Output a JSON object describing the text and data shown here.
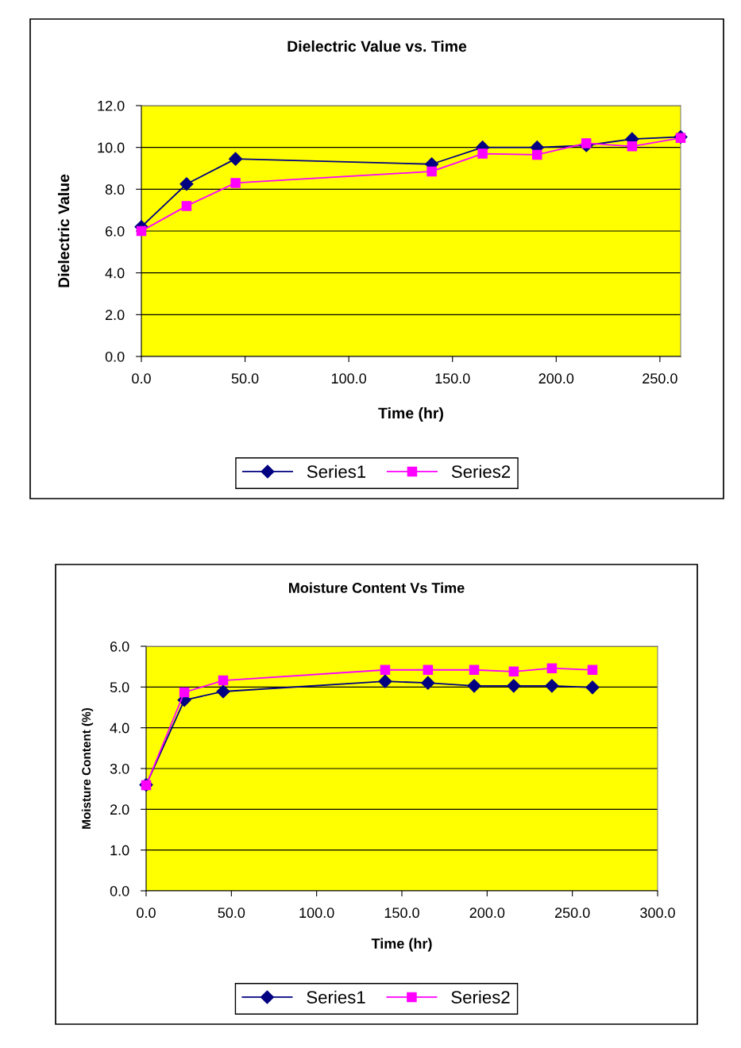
{
  "chart_data": [
    {
      "type": "line",
      "title": "Dielectric Value vs. Time",
      "xlabel": "Time (hr)",
      "ylabel": "Dielectric Value",
      "xlim": [
        0,
        260
      ],
      "xticks": [
        {
          "value": 0,
          "label": "0.0"
        },
        {
          "value": 50,
          "label": "50.0"
        },
        {
          "value": 100,
          "label": "100.0"
        },
        {
          "value": 150,
          "label": "150.0"
        },
        {
          "value": 200,
          "label": "200.0"
        },
        {
          "value": 250,
          "label": "250.0"
        }
      ],
      "ylim": [
        0,
        12
      ],
      "yticks": [
        {
          "value": 0,
          "label": "0.0"
        },
        {
          "value": 2,
          "label": "2.0"
        },
        {
          "value": 4,
          "label": "4.0"
        },
        {
          "value": 6,
          "label": "6.0"
        },
        {
          "value": 8,
          "label": "8.0"
        },
        {
          "value": 10,
          "label": "10.0"
        },
        {
          "value": 12,
          "label": "12.0"
        }
      ],
      "grid": "y",
      "legend": "bottom",
      "series": [
        {
          "name": "Series1",
          "color": "#000080",
          "marker": "diamond",
          "x": [
            0,
            21.8,
            45.4,
            140,
            164.5,
            190.8,
            214.5,
            236.6,
            260
          ],
          "values": [
            6.2,
            8.25,
            9.45,
            9.2,
            10.0,
            10.0,
            10.1,
            10.4,
            10.5
          ]
        },
        {
          "name": "Series2",
          "color": "#ff00ff",
          "marker": "square",
          "x": [
            0,
            21.8,
            45.4,
            140,
            164.5,
            190.8,
            214.5,
            236.6,
            260
          ],
          "values": [
            6.0,
            7.2,
            8.3,
            8.85,
            9.7,
            9.65,
            10.2,
            10.05,
            10.45
          ]
        }
      ]
    },
    {
      "type": "line",
      "title": "Moisture Content Vs Time",
      "xlabel": "Time (hr)",
      "ylabel": "Moisture Content (%)",
      "xlim": [
        0,
        300
      ],
      "xticks": [
        {
          "value": 0,
          "label": "0.0"
        },
        {
          "value": 50,
          "label": "50.0"
        },
        {
          "value": 100,
          "label": "100.0"
        },
        {
          "value": 150,
          "label": "150.0"
        },
        {
          "value": 200,
          "label": "200.0"
        },
        {
          "value": 250,
          "label": "250.0"
        },
        {
          "value": 300,
          "label": "300.0"
        }
      ],
      "ylim": [
        0,
        6
      ],
      "yticks": [
        {
          "value": 0,
          "label": "0.0"
        },
        {
          "value": 1,
          "label": "1.0"
        },
        {
          "value": 2,
          "label": "2.0"
        },
        {
          "value": 3,
          "label": "3.0"
        },
        {
          "value": 4,
          "label": "4.0"
        },
        {
          "value": 5,
          "label": "5.0"
        },
        {
          "value": 6,
          "label": "6.0"
        }
      ],
      "grid": "y",
      "legend": "bottom",
      "series": [
        {
          "name": "Series1",
          "color": "#000080",
          "marker": "diamond",
          "x": [
            0,
            22.4,
            45.2,
            140.2,
            165.3,
            192.4,
            215.6,
            238,
            261.8
          ],
          "values": [
            2.6,
            4.68,
            4.89,
            5.14,
            5.1,
            5.03,
            5.03,
            5.03,
            4.99
          ]
        },
        {
          "name": "Series2",
          "color": "#ff00ff",
          "marker": "square",
          "x": [
            0,
            22.4,
            45.2,
            140.2,
            165.3,
            192.4,
            215.6,
            238,
            261.8
          ],
          "values": [
            2.59,
            4.87,
            5.16,
            5.42,
            5.42,
            5.42,
            5.38,
            5.46,
            5.42
          ]
        }
      ]
    }
  ]
}
